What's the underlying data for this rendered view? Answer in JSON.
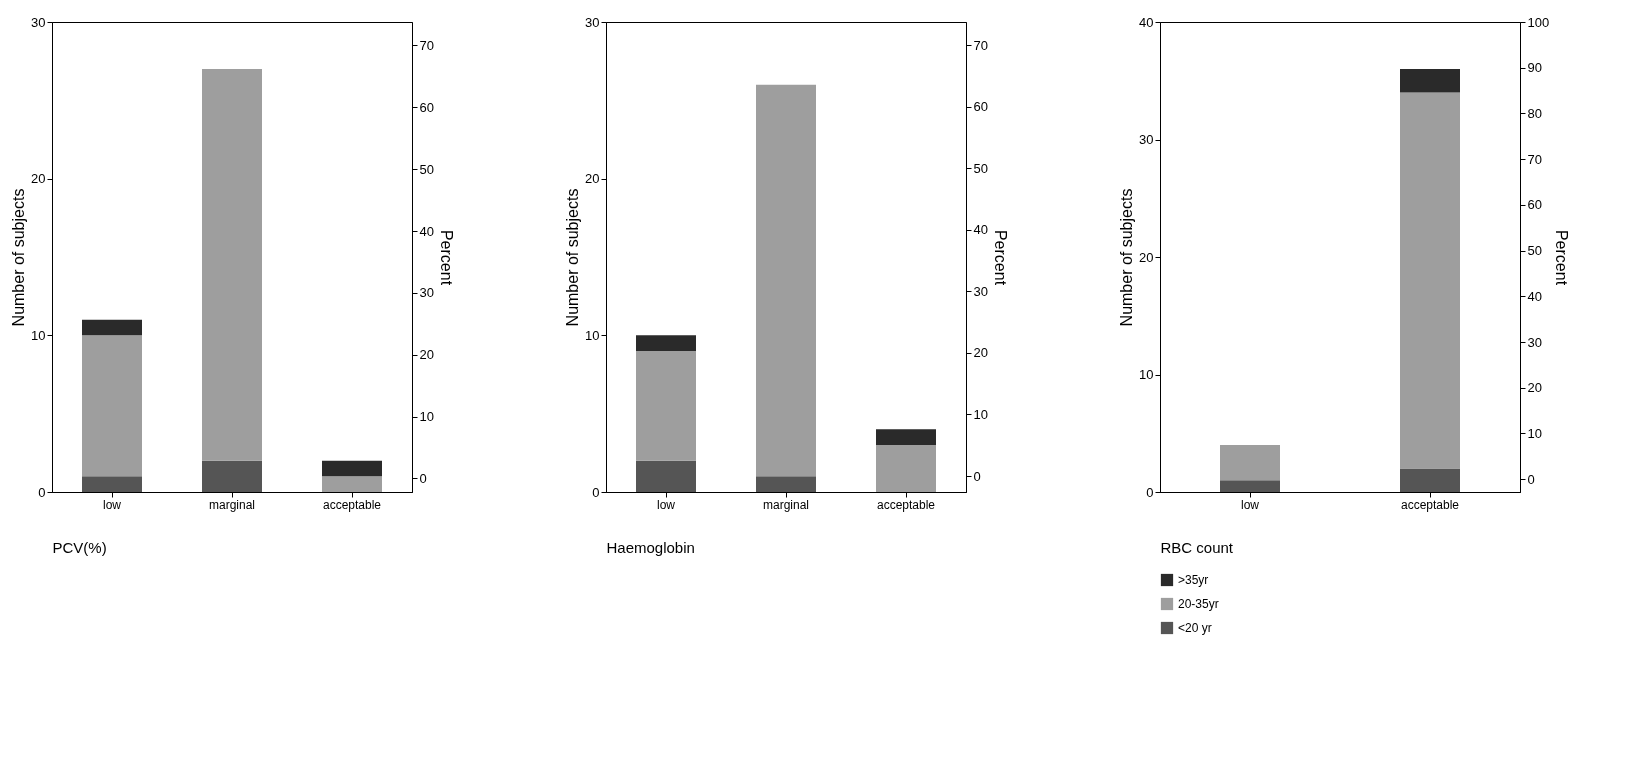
{
  "chart_data": [
    {
      "type": "bar",
      "stacked": true,
      "xlabel": "PCV(%)",
      "ylabel": "Number of subjects",
      "y2label": "Percent",
      "categories": [
        "low",
        "marginal",
        "acceptable"
      ],
      "ylim": [
        0,
        30
      ],
      "yticks": [
        0,
        10,
        20,
        30
      ],
      "y2lim": [
        -2.2,
        73.8
      ],
      "y2ticks": [
        0,
        10,
        20,
        30,
        40,
        50,
        60,
        70
      ],
      "grid": false,
      "legend": false,
      "series": [
        {
          "color": "#555555",
          "values": [
            1,
            2,
            0
          ]
        },
        {
          "color": "#9e9e9e",
          "values": [
            9,
            25,
            1
          ]
        },
        {
          "color": "#2a2a2a",
          "values": [
            1,
            0,
            1
          ]
        }
      ]
    },
    {
      "type": "bar",
      "stacked": true,
      "xlabel": "Haemoglobin",
      "ylabel": "Number of subjects",
      "y2label": "Percent",
      "categories": [
        "low",
        "marginal",
        "acceptable"
      ],
      "ylim": [
        0,
        30
      ],
      "yticks": [
        0,
        10,
        20,
        30
      ],
      "y2lim": [
        -2.6,
        73.8
      ],
      "y2ticks": [
        0,
        10,
        20,
        30,
        40,
        50,
        60,
        70
      ],
      "grid": false,
      "legend": false,
      "series": [
        {
          "color": "#555555",
          "values": [
            2,
            1,
            0
          ]
        },
        {
          "color": "#9e9e9e",
          "values": [
            7,
            25,
            3
          ]
        },
        {
          "color": "#2a2a2a",
          "values": [
            1,
            0,
            1
          ]
        }
      ]
    },
    {
      "type": "bar",
      "stacked": true,
      "xlabel": "RBC count",
      "ylabel": "Number of subjects",
      "y2label": "Percent",
      "categories": [
        "low",
        "acceptable"
      ],
      "ylim": [
        0,
        40
      ],
      "yticks": [
        0,
        10,
        20,
        30,
        40
      ],
      "y2lim": [
        -2.8,
        100
      ],
      "y2ticks": [
        0,
        10,
        20,
        30,
        40,
        50,
        60,
        70,
        80,
        90,
        100
      ],
      "grid": false,
      "legend": "bottom",
      "series": [
        {
          "name": "<20 yr",
          "color": "#555555",
          "values": [
            1,
            2
          ]
        },
        {
          "name": "20-35yr",
          "color": "#9e9e9e",
          "values": [
            3,
            32
          ]
        },
        {
          "name": ">35yr",
          "color": "#2a2a2a",
          "values": [
            0,
            2
          ]
        }
      ]
    }
  ]
}
